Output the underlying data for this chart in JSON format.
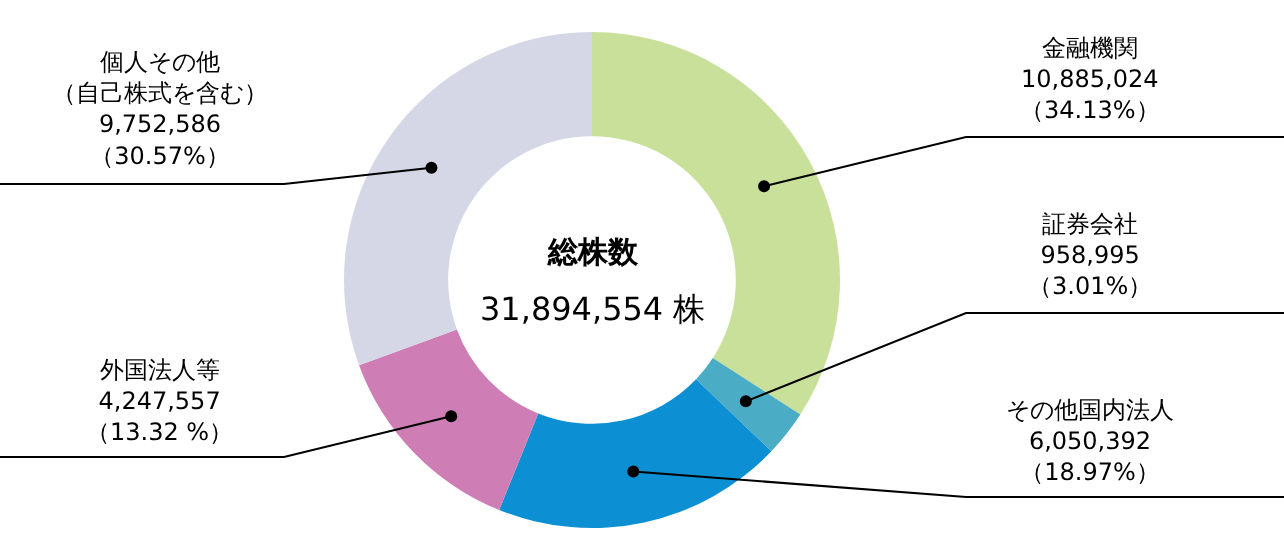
{
  "chart_data": {
    "type": "donut",
    "categories": [
      "金融機関",
      "証券会社",
      "その他国内法人",
      "外国法人等",
      "個人その他（自己株式を含む）"
    ],
    "values": [
      10885024,
      958995,
      6050392,
      4247557,
      9752586
    ],
    "value_labels": [
      "10,885,024\n（34.13%）",
      "958,995\n（3.01%）",
      "6,050,392\n（18.97%）",
      "4,247,557\n（13.32 %）",
      "9,752,586\n（30.57%）"
    ],
    "colors": [
      "#c9e09b",
      "#4bacc6",
      "#0d8fd4",
      "#ce7eb5",
      "#d5d6e6"
    ],
    "annotations": [
      "総株数",
      "31,894,554 株"
    ],
    "legend": false
  }
}
